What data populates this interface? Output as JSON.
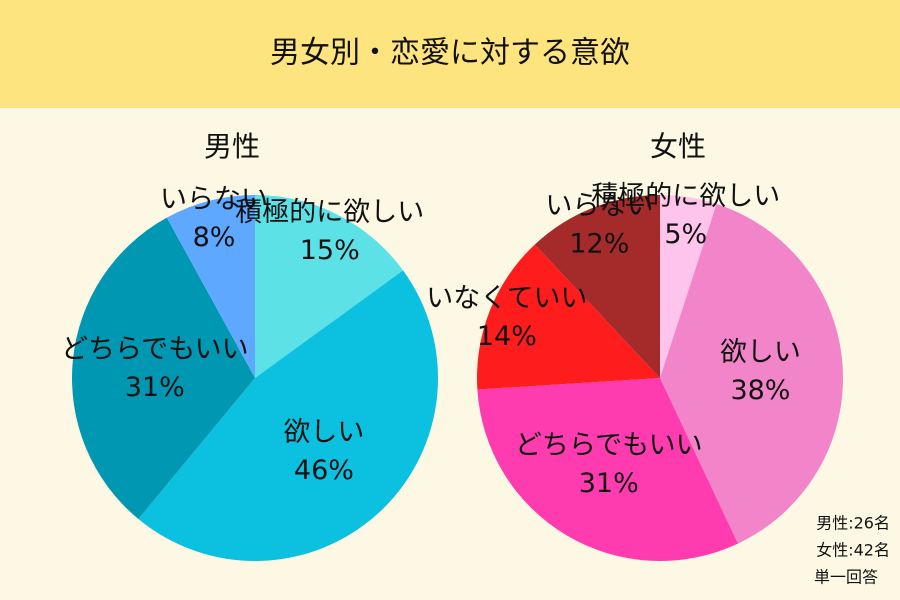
{
  "title": "男女別・恋愛に対する意欲",
  "notes": [
    "男性:26名",
    "女性:42名",
    "単一回答"
  ],
  "chart_data": [
    {
      "type": "pie",
      "title": "男性",
      "categories": [
        "積極的に欲しい",
        "欲しい",
        "どちらでもいい",
        "いらない"
      ],
      "values": [
        15,
        46,
        31,
        8
      ],
      "value_labels": [
        "15%",
        "46%",
        "31%",
        "8%"
      ],
      "colors": [
        "#5ce1e6",
        "#0cc0df",
        "#0097b2",
        "#5ea8ff"
      ]
    },
    {
      "type": "pie",
      "title": "女性",
      "categories": [
        "積極的に欲しい",
        "欲しい",
        "どちらでもいい",
        "いなくていい",
        "いらない"
      ],
      "values": [
        5,
        38,
        31,
        14,
        12
      ],
      "value_labels": [
        "5%",
        "38%",
        "31%",
        "14%",
        "12%"
      ],
      "colors": [
        "#ffc4ec",
        "#f285c9",
        "#ff3bb0",
        "#ff1c1c",
        "#a52a2a"
      ]
    }
  ]
}
